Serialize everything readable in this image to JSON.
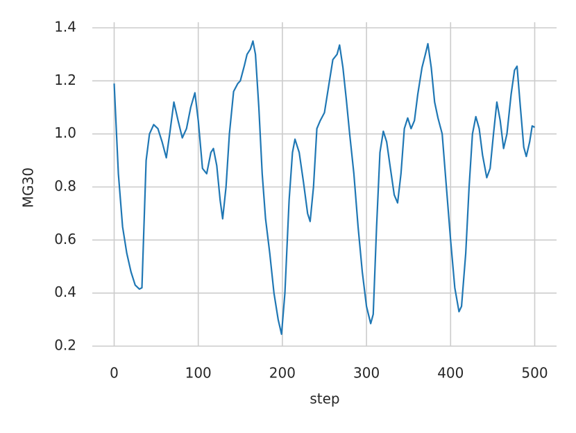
{
  "chart_data": {
    "type": "line",
    "xlabel": "step",
    "ylabel": "MG30",
    "x": [
      0,
      5,
      10,
      15,
      20,
      25,
      30,
      33,
      38,
      42,
      47,
      52,
      57,
      62,
      66,
      71,
      76,
      81,
      86,
      91,
      96,
      100,
      105,
      110,
      115,
      118,
      122,
      126,
      129,
      133,
      137,
      142,
      147,
      150,
      155,
      158,
      162,
      165,
      168,
      172,
      176,
      180,
      185,
      190,
      195,
      199,
      203,
      208,
      212,
      215,
      220,
      225,
      230,
      233,
      237,
      241,
      245,
      250,
      255,
      260,
      265,
      268,
      272,
      276,
      280,
      285,
      290,
      295,
      300,
      305,
      308,
      312,
      316,
      320,
      324,
      328,
      333,
      337,
      341,
      345,
      349,
      353,
      357,
      361,
      366,
      370,
      373,
      377,
      381,
      385,
      390,
      395,
      400,
      405,
      410,
      413,
      418,
      422,
      426,
      430,
      434,
      438,
      443,
      447,
      451,
      455,
      459,
      463,
      467,
      472,
      476,
      479,
      483,
      487,
      490,
      494,
      497,
      500
    ],
    "series": [
      {
        "name": "MG30",
        "color": "#1f77b4",
        "values": [
          1.19,
          0.85,
          0.65,
          0.55,
          0.48,
          0.43,
          0.415,
          0.42,
          0.9,
          1.0,
          1.035,
          1.02,
          0.97,
          0.91,
          1.0,
          1.12,
          1.05,
          0.985,
          1.02,
          1.1,
          1.155,
          1.05,
          0.87,
          0.85,
          0.93,
          0.945,
          0.88,
          0.75,
          0.68,
          0.8,
          1.0,
          1.16,
          1.19,
          1.2,
          1.26,
          1.3,
          1.32,
          1.35,
          1.3,
          1.1,
          0.85,
          0.68,
          0.55,
          0.4,
          0.3,
          0.245,
          0.4,
          0.75,
          0.93,
          0.98,
          0.93,
          0.82,
          0.7,
          0.67,
          0.8,
          1.02,
          1.05,
          1.08,
          1.18,
          1.28,
          1.3,
          1.335,
          1.25,
          1.13,
          1.0,
          0.85,
          0.65,
          0.48,
          0.35,
          0.285,
          0.32,
          0.65,
          0.93,
          1.01,
          0.97,
          0.88,
          0.77,
          0.74,
          0.85,
          1.02,
          1.06,
          1.02,
          1.05,
          1.15,
          1.25,
          1.3,
          1.34,
          1.25,
          1.12,
          1.06,
          1.0,
          0.8,
          0.6,
          0.42,
          0.33,
          0.35,
          0.55,
          0.8,
          1.0,
          1.065,
          1.02,
          0.92,
          0.835,
          0.87,
          1.0,
          1.12,
          1.05,
          0.945,
          1.0,
          1.15,
          1.24,
          1.255,
          1.1,
          0.95,
          0.915,
          0.97,
          1.03,
          1.025
        ]
      }
    ],
    "xlim": [
      -26,
      526
    ],
    "ylim": [
      0.2,
      1.4
    ],
    "xticks": [
      0,
      100,
      200,
      300,
      400,
      500
    ],
    "yticks": [
      {
        "value": 0.2,
        "label": "0.2"
      },
      {
        "value": 0.4,
        "label": "0.4"
      },
      {
        "value": 0.6,
        "label": "0.6"
      },
      {
        "value": 0.8,
        "label": "0.8"
      },
      {
        "value": 1.0,
        "label": "1.0"
      },
      {
        "value": 1.2,
        "label": "1.2"
      },
      {
        "value": 1.4,
        "label": "1.4"
      }
    ],
    "grid": true
  }
}
